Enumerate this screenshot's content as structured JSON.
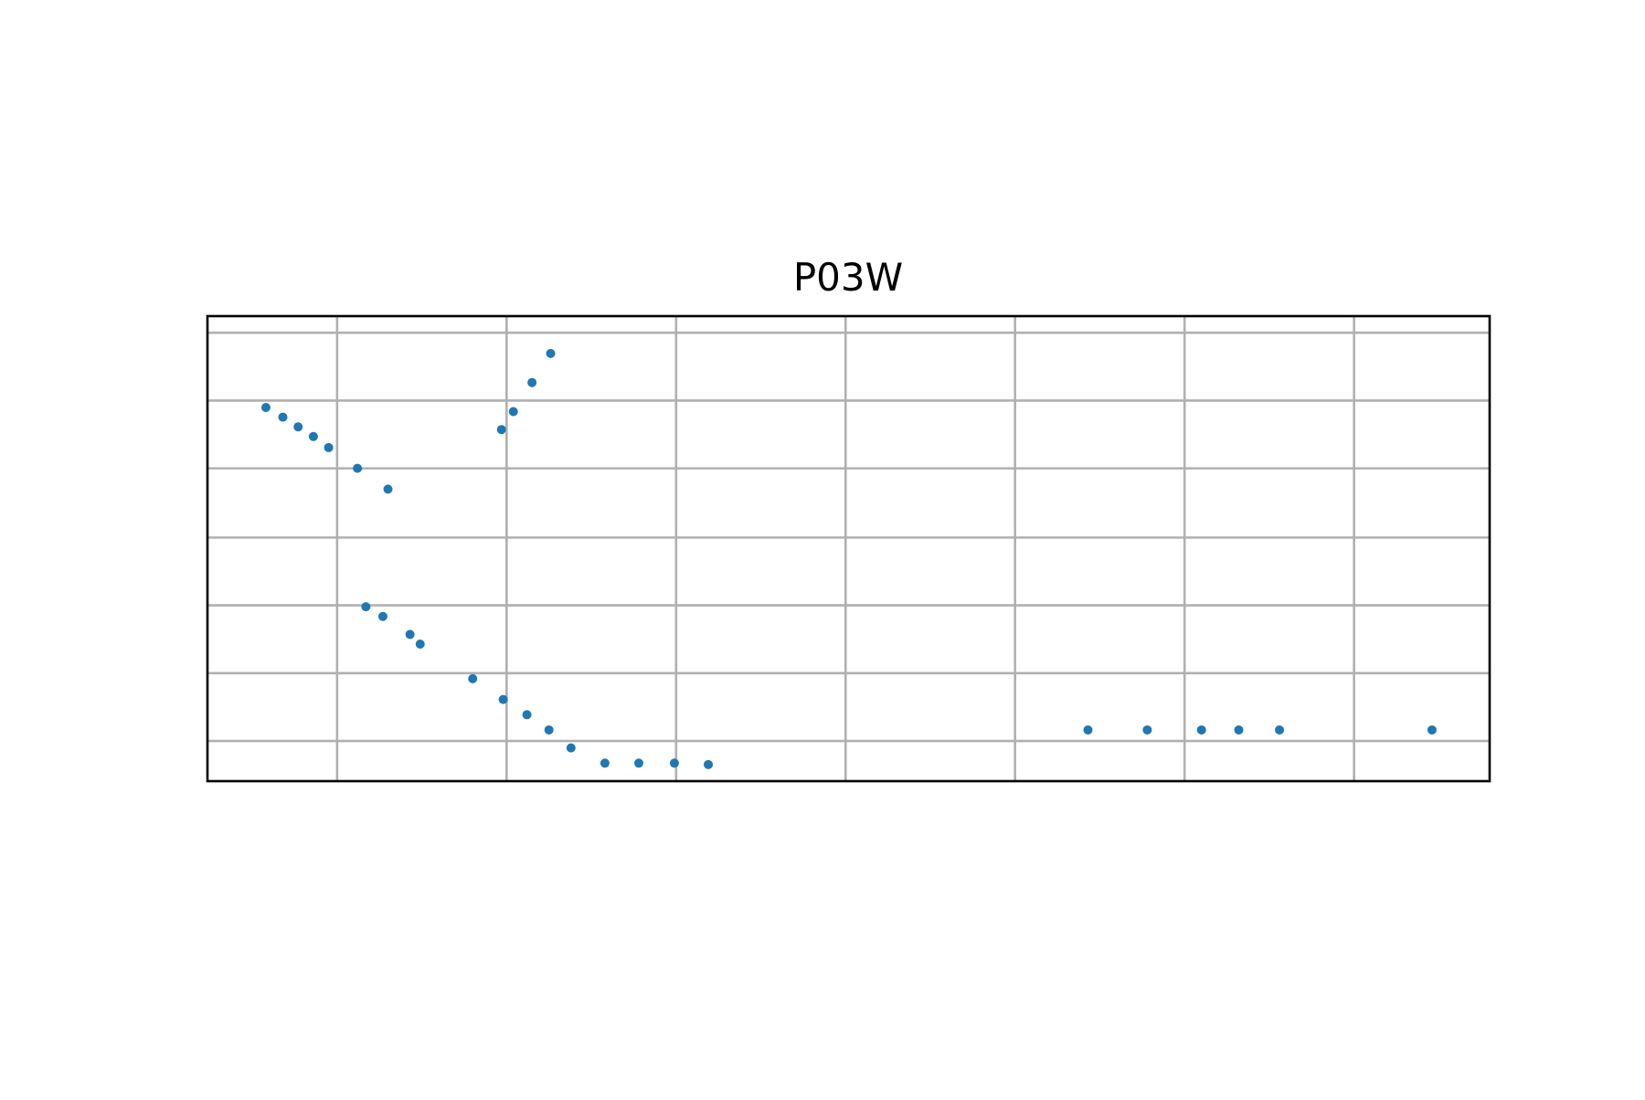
{
  "chart_data": {
    "type": "scatter",
    "title": "P03W",
    "xlabel": "",
    "ylabel": "",
    "xlim": [
      -0.765,
      6.8
    ],
    "ylim": [
      0.48,
      3.84
    ],
    "grid": true,
    "x_ticks": [
      0,
      1,
      2,
      3,
      4,
      5,
      6
    ],
    "y_ticks": [
      0.77,
      1.26,
      1.75,
      2.24,
      2.74,
      3.23,
      3.72
    ],
    "tick_labels_visible": false,
    "marker_color": "#1f77b4",
    "series": [
      {
        "x": [
          -0.42,
          -0.32,
          -0.23,
          -0.14,
          -0.05,
          0.12,
          0.3,
          0.17,
          0.27,
          0.43,
          0.49,
          0.8,
          0.98,
          1.12,
          1.25,
          1.38,
          1.58,
          1.78,
          1.99,
          2.19,
          0.97,
          1.04,
          1.15,
          1.26,
          4.43,
          4.78,
          5.1,
          5.32,
          5.56,
          6.46
        ],
        "y": [
          3.18,
          3.11,
          3.04,
          2.97,
          2.89,
          2.74,
          2.59,
          1.74,
          1.67,
          1.54,
          1.47,
          1.22,
          1.07,
          0.96,
          0.85,
          0.72,
          0.61,
          0.61,
          0.61,
          0.6,
          3.02,
          3.15,
          3.36,
          3.57,
          0.85,
          0.85,
          0.85,
          0.85,
          0.85,
          0.85
        ]
      }
    ]
  }
}
